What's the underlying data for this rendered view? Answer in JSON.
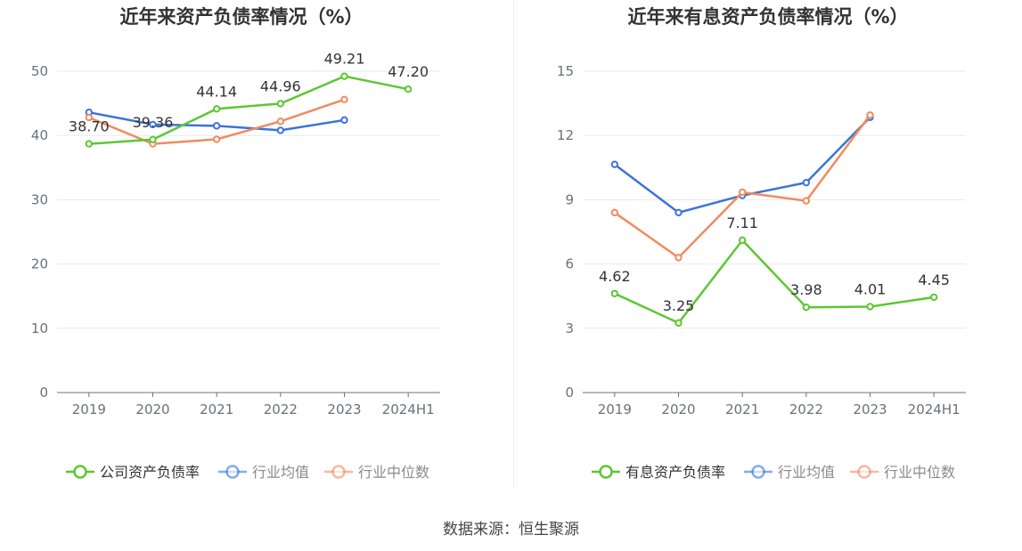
{
  "source": "数据来源：恒生聚源",
  "chart_data": [
    {
      "type": "line",
      "title": "近年来资产负债率情况（%）",
      "categories": [
        "2019",
        "2020",
        "2021",
        "2022",
        "2023",
        "2024H1"
      ],
      "ylim": [
        0,
        50
      ],
      "yticks": [
        0,
        10,
        20,
        30,
        40,
        50
      ],
      "grid": true,
      "legend_position": "bottom",
      "series": [
        {
          "name": "公司资产负债率",
          "color": "#5dc732",
          "values": [
            38.7,
            39.36,
            44.14,
            44.96,
            49.21,
            47.2
          ],
          "labels": [
            "38.70",
            "39.36",
            "44.14",
            "44.96",
            "49.21",
            "47.20"
          ]
        },
        {
          "name": "行业均值",
          "color": "#3b74d9",
          "values": [
            43.6,
            41.7,
            41.5,
            40.8,
            42.4,
            null
          ]
        },
        {
          "name": "行业中位数",
          "color": "#f08b60",
          "values": [
            42.8,
            38.7,
            39.4,
            42.2,
            45.6,
            null
          ]
        }
      ]
    },
    {
      "type": "line",
      "title": "近年来有息资产负债率情况（%）",
      "categories": [
        "2019",
        "2020",
        "2021",
        "2022",
        "2023",
        "2024H1"
      ],
      "ylim": [
        0,
        15
      ],
      "yticks": [
        0,
        3,
        6,
        9,
        12,
        15
      ],
      "grid": true,
      "legend_position": "bottom",
      "series": [
        {
          "name": "有息资产负债率",
          "color": "#5dc732",
          "values": [
            4.62,
            3.25,
            7.11,
            3.98,
            4.01,
            4.45
          ],
          "labels": [
            "4.62",
            "3.25",
            "7.11",
            "3.98",
            "4.01",
            "4.45"
          ]
        },
        {
          "name": "行业均值",
          "color": "#3b74d9",
          "values": [
            10.65,
            8.4,
            9.2,
            9.8,
            12.85,
            null
          ]
        },
        {
          "name": "行业中位数",
          "color": "#f08b60",
          "values": [
            8.4,
            6.3,
            9.35,
            8.95,
            12.95,
            null
          ]
        }
      ]
    }
  ]
}
